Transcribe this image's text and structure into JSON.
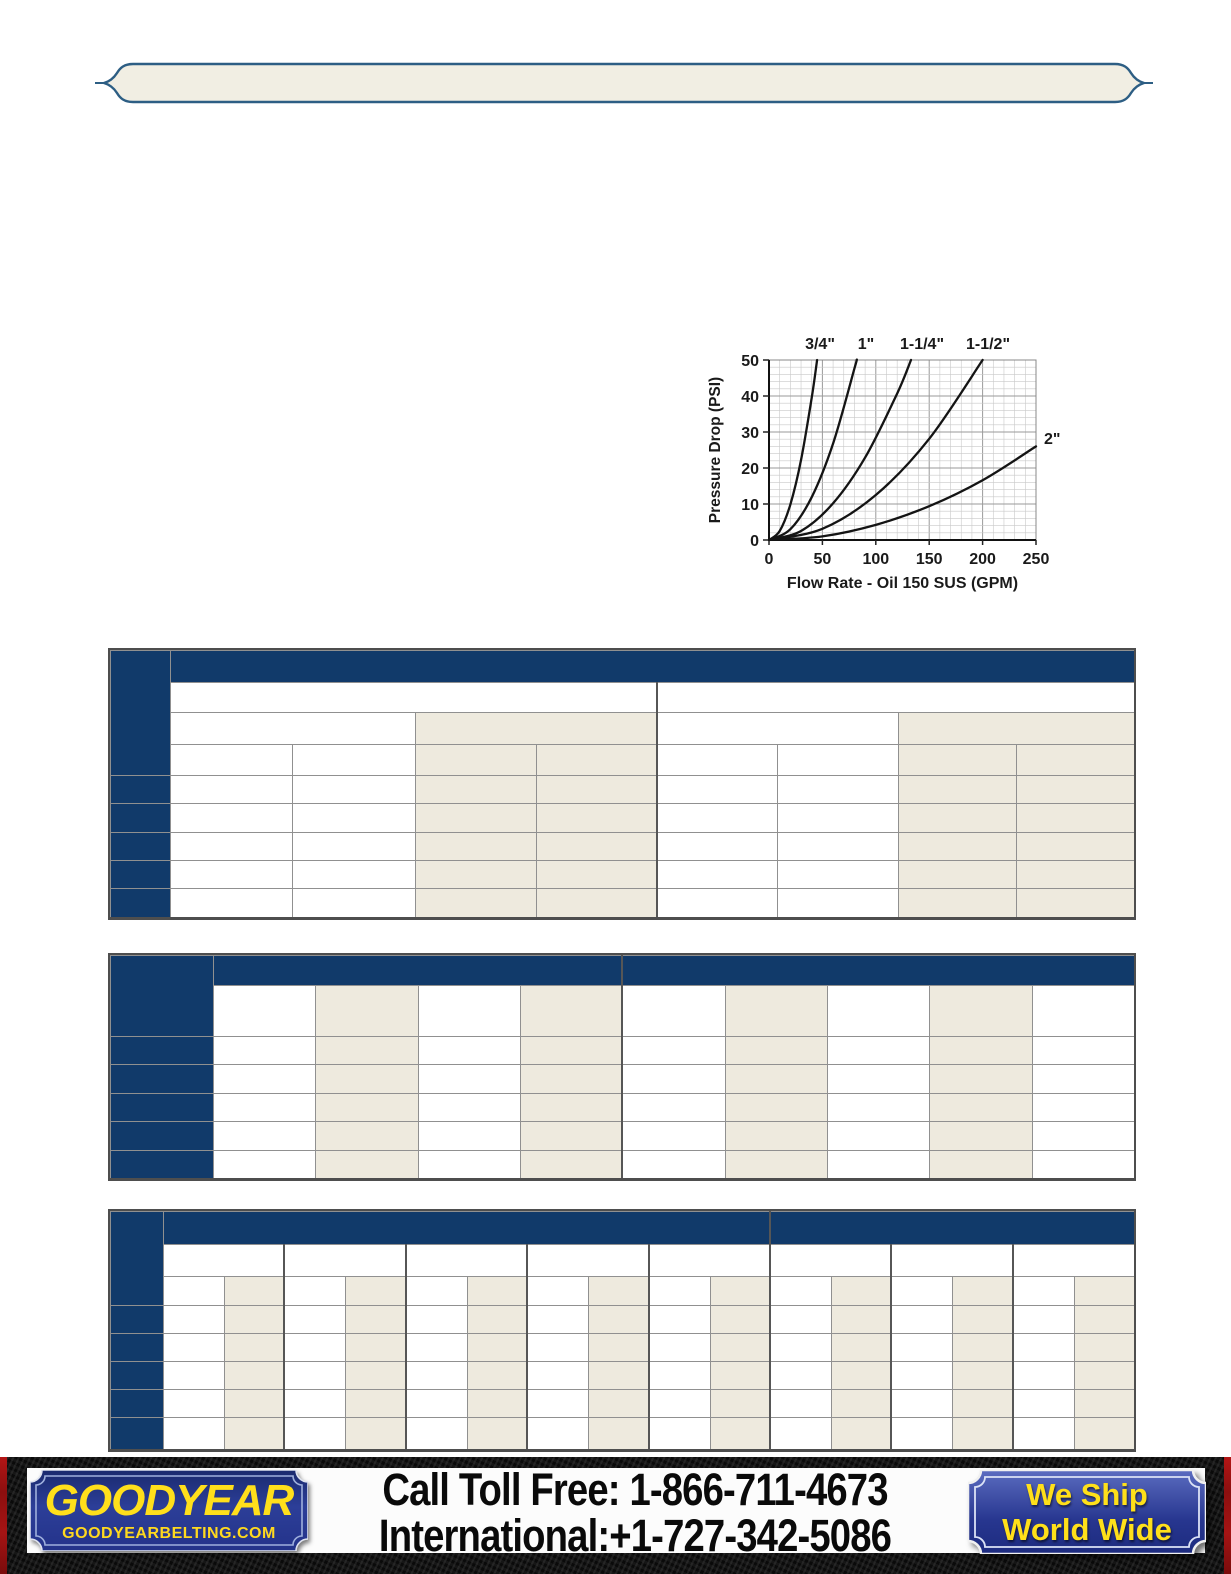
{
  "banner": {
    "text": ""
  },
  "colors": {
    "banner_fill": "#f1eee3",
    "banner_stroke": "#2d5e84",
    "table_header_navy": "#113a6a",
    "table_shaded_beige": "#eeeade",
    "table_grid_line": "#909090",
    "footer_red_edge": "#a01010",
    "badge_blue": "#27368f",
    "goodyear_yellow": "#ffdf1b"
  },
  "chart_data": {
    "type": "line",
    "title": "",
    "xlabel": "Flow Rate - Oil 150 SUS (GPM)",
    "ylabel": "Pressure Drop (PSI)",
    "xlim": [
      0,
      250
    ],
    "ylim": [
      0,
      50
    ],
    "xticks": [
      0,
      50,
      100,
      150,
      200,
      250
    ],
    "yticks": [
      0,
      10,
      20,
      30,
      40,
      50
    ],
    "grid": "fine minor grid every 10 GPM / 2 PSI",
    "legend_position": "labels at curve tops",
    "series": [
      {
        "name": "3/4\"",
        "points": [
          [
            0,
            0
          ],
          [
            10,
            2.5
          ],
          [
            20,
            9.9
          ],
          [
            30,
            22.2
          ],
          [
            40,
            39.5
          ],
          [
            45,
            50
          ]
        ]
      },
      {
        "name": "1\"",
        "points": [
          [
            0,
            0
          ],
          [
            20,
            3.0
          ],
          [
            40,
            11.9
          ],
          [
            60,
            26.8
          ],
          [
            80,
            47.6
          ],
          [
            82,
            50
          ]
        ]
      },
      {
        "name": "1-1/4\"",
        "points": [
          [
            0,
            0
          ],
          [
            30,
            2.5
          ],
          [
            60,
            10.2
          ],
          [
            90,
            22.9
          ],
          [
            120,
            40.7
          ],
          [
            133,
            50
          ]
        ]
      },
      {
        "name": "1-1/2\"",
        "points": [
          [
            0,
            0
          ],
          [
            50,
            3.1
          ],
          [
            100,
            12.5
          ],
          [
            150,
            28.1
          ],
          [
            200,
            50
          ]
        ]
      },
      {
        "name": "2\"",
        "points": [
          [
            0,
            0
          ],
          [
            50,
            1.0
          ],
          [
            100,
            4.2
          ],
          [
            150,
            9.4
          ],
          [
            200,
            16.6
          ],
          [
            250,
            26
          ]
        ]
      }
    ]
  },
  "footer": {
    "goodyear_badge": {
      "brand": "GOODYEAR",
      "website": "GOODYEARBELTING.COM"
    },
    "call_toll_free": "Call Toll Free: 1-866-711-4673",
    "international": "International:+1-727-342-5086",
    "ship_badge": {
      "line1": "We Ship",
      "line2": "World Wide"
    }
  }
}
